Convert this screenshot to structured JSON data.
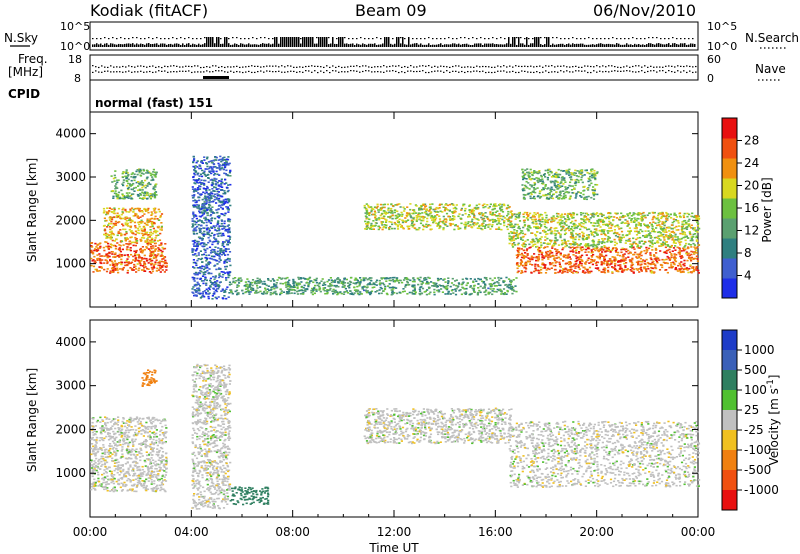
{
  "header": {
    "station": "Kodiak (fitACF)",
    "beam": "Beam 09",
    "date": "06/Nov/2010"
  },
  "aux_labels": {
    "nsky": "N.Sky",
    "freq_line1": "Freq.",
    "freq_line2": "[MHz]",
    "cpid": "CPID",
    "nsearch": "N.Search",
    "nave": "Nave",
    "nsky_top": "10^5",
    "nsky_bottom": "10^0",
    "freq_top": "18",
    "freq_bottom": "8",
    "nave_top": "60",
    "nave_bottom": "0",
    "cpid_value": "normal (fast) 151"
  },
  "chart_data": [
    {
      "type": "heatmap",
      "title": "",
      "xlabel": "Time UT",
      "ylabel": "Slant Range [km]",
      "xlim": [
        0,
        24
      ],
      "ylim": [
        0,
        4500
      ],
      "x_ticks": [
        "00:00",
        "04:00",
        "08:00",
        "12:00",
        "16:00",
        "20:00",
        "00:00"
      ],
      "y_ticks": [
        1000,
        2000,
        3000,
        4000
      ],
      "colorbar": {
        "label": "Power [dB]",
        "ticks": [
          4,
          8,
          12,
          16,
          20,
          24,
          28
        ],
        "range": [
          0,
          32
        ],
        "colors": [
          "#1e2ee8",
          "#3f5fd0",
          "#2f7f80",
          "#5aa070",
          "#6cc040",
          "#d8d820",
          "#f09010",
          "#f05010",
          "#e81010"
        ]
      },
      "features": [
        {
          "t0": 0.0,
          "t1": 3.0,
          "r0": 800,
          "r1": 1500,
          "power": 26
        },
        {
          "t0": 0.5,
          "t1": 2.8,
          "r0": 1500,
          "r1": 2300,
          "power": 22
        },
        {
          "t0": 0.8,
          "t1": 2.6,
          "r0": 2500,
          "r1": 3200,
          "power": 14
        },
        {
          "t0": 4.4,
          "t1": 4.8,
          "r0": 2000,
          "r1": 2600,
          "power": 8
        },
        {
          "t0": 4.0,
          "t1": 5.5,
          "r0": 200,
          "r1": 3500,
          "power": 6
        },
        {
          "t0": 5.5,
          "t1": 16.8,
          "r0": 300,
          "r1": 700,
          "power": 12
        },
        {
          "t0": 10.8,
          "t1": 16.6,
          "r0": 1800,
          "r1": 2400,
          "power": 18
        },
        {
          "t0": 16.8,
          "t1": 24.0,
          "r0": 800,
          "r1": 1400,
          "power": 26
        },
        {
          "t0": 16.5,
          "t1": 24.0,
          "r0": 1400,
          "r1": 2200,
          "power": 18
        },
        {
          "t0": 17.0,
          "t1": 20.0,
          "r0": 2500,
          "r1": 3200,
          "power": 14
        }
      ]
    },
    {
      "type": "heatmap",
      "title": "",
      "xlabel": "Time UT",
      "ylabel": "Slant Range [km]",
      "xlim": [
        0,
        24
      ],
      "ylim": [
        0,
        4500
      ],
      "x_ticks": [
        "00:00",
        "04:00",
        "08:00",
        "12:00",
        "16:00",
        "20:00",
        "00:00"
      ],
      "y_ticks": [
        1000,
        2000,
        3000,
        4000
      ],
      "colorbar": {
        "label": "Velocity [m s^-1]",
        "ticks": [
          1000,
          500,
          100,
          25,
          -25,
          -100,
          -500,
          -1000
        ],
        "colors": [
          "#1e3cc8",
          "#3a60b8",
          "#2f7f60",
          "#50c030",
          "#c0c0c0",
          "#f0c020",
          "#f08010",
          "#f05010",
          "#e81010"
        ]
      },
      "features": [
        {
          "t0": 0.0,
          "t1": 3.0,
          "r0": 600,
          "r1": 2300,
          "velocity": 0
        },
        {
          "t0": 2.0,
          "t1": 2.6,
          "r0": 3000,
          "r1": 3400,
          "velocity": -300
        },
        {
          "t0": 4.0,
          "t1": 5.5,
          "r0": 200,
          "r1": 3500,
          "velocity": 0
        },
        {
          "t0": 5.5,
          "t1": 7.0,
          "r0": 300,
          "r1": 700,
          "velocity": 200
        },
        {
          "t0": 10.8,
          "t1": 16.6,
          "r0": 1700,
          "r1": 2500,
          "velocity": 0
        },
        {
          "t0": 16.5,
          "t1": 24.0,
          "r0": 700,
          "r1": 2200,
          "velocity": 0
        }
      ]
    }
  ]
}
